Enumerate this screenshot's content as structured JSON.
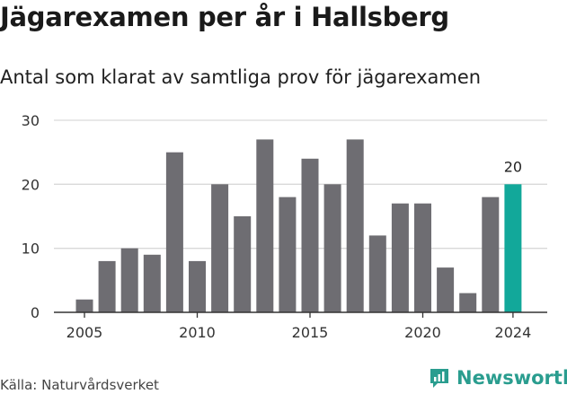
{
  "title": "Jägarexamen per år i Hallsberg",
  "subtitle": "Antal som klarat av samtliga prov för jägarexamen",
  "source": "Källa: Naturvårdsverket",
  "brand": {
    "name": "Newsworthy",
    "icon": "newsworthy-logo-icon",
    "color": "#2a9d8f"
  },
  "colors": {
    "bar": "#6e6d72",
    "highlight": "#12a89a",
    "grid": "#d9d9d9",
    "axis": "#333333"
  },
  "chart_data": {
    "type": "bar",
    "x": [
      2005,
      2006,
      2007,
      2008,
      2009,
      2010,
      2011,
      2012,
      2013,
      2014,
      2015,
      2016,
      2017,
      2018,
      2019,
      2020,
      2021,
      2022,
      2023,
      2024
    ],
    "values": [
      2,
      8,
      10,
      9,
      25,
      8,
      20,
      15,
      27,
      18,
      24,
      20,
      27,
      12,
      17,
      17,
      7,
      3,
      18,
      20
    ],
    "highlight_x": 2024,
    "highlight_label": "20",
    "xticks": [
      "2005",
      "2010",
      "2015",
      "2020",
      "2024"
    ],
    "yticks": [
      "0",
      "10",
      "20",
      "30"
    ],
    "ylim": [
      0,
      30
    ],
    "grid": true,
    "xlabel": "",
    "ylabel": ""
  }
}
